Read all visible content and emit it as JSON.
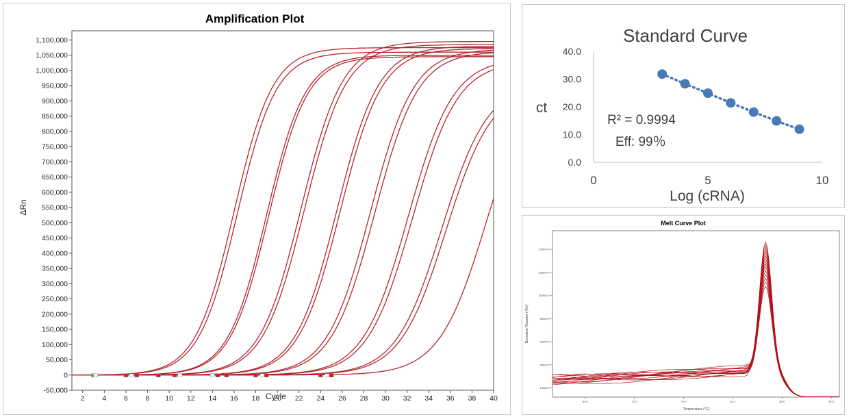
{
  "colors": {
    "curve": "#b3252c",
    "melt_curve": "#b0121b",
    "std_point": "#4a79b8",
    "axis": "#444444",
    "text": "#404040"
  },
  "chart_data": [
    {
      "id": "amplification",
      "type": "line",
      "title": "Amplification Plot",
      "xlabel": "Cycle",
      "ylabel": "ΔRn",
      "xlim": [
        1,
        40
      ],
      "ylim": [
        -50000,
        1130000
      ],
      "x_ticks": [
        2,
        4,
        6,
        8,
        10,
        12,
        14,
        16,
        18,
        20,
        22,
        24,
        26,
        28,
        30,
        32,
        34,
        36,
        38,
        40
      ],
      "y_ticks": [
        -50000,
        0,
        50000,
        100000,
        150000,
        200000,
        250000,
        300000,
        350000,
        400000,
        450000,
        500000,
        550000,
        600000,
        650000,
        700000,
        750000,
        800000,
        850000,
        900000,
        950000,
        1000000,
        1050000,
        1100000
      ],
      "y_tick_labels": [
        "-50,000",
        "0",
        "50,000",
        "100,000",
        "150,000",
        "200,000",
        "250,000",
        "300,000",
        "350,000",
        "400,000",
        "450,000",
        "500,000",
        "550,000",
        "600,000",
        "650,000",
        "700,000",
        "750,000",
        "800,000",
        "850,000",
        "900,000",
        "950,000",
        "1,000,000",
        "1,050,000",
        "1,100,000"
      ],
      "series": [
        {
          "ct": 16.0,
          "plateau": 1075000,
          "k": 0.56
        },
        {
          "ct": 16.3,
          "plateau": 1060000,
          "k": 0.56
        },
        {
          "ct": 19.0,
          "plateau": 1050000,
          "k": 0.56
        },
        {
          "ct": 19.2,
          "plateau": 1045000,
          "k": 0.56
        },
        {
          "ct": 22.2,
          "plateau": 1095000,
          "k": 0.52
        },
        {
          "ct": 22.5,
          "plateau": 1085000,
          "k": 0.52
        },
        {
          "ct": 25.5,
          "plateau": 1080000,
          "k": 0.52
        },
        {
          "ct": 25.8,
          "plateau": 1072000,
          "k": 0.52
        },
        {
          "ct": 28.6,
          "plateau": 1070000,
          "k": 0.5
        },
        {
          "ct": 29.0,
          "plateau": 1062000,
          "k": 0.5
        },
        {
          "ct": 32.1,
          "plateau": 1040000,
          "k": 0.48
        },
        {
          "ct": 32.5,
          "plateau": 1030000,
          "k": 0.48
        },
        {
          "ct": 35.2,
          "plateau": 960000,
          "k": 0.47
        },
        {
          "ct": 35.6,
          "plateau": 950000,
          "k": 0.47
        },
        {
          "ct": 39.3,
          "plateau": 1000000,
          "k": 0.46
        }
      ],
      "markers": [
        {
          "x": 3,
          "color": "#27c227"
        },
        {
          "x": 3.2,
          "color": "#ffffff"
        },
        {
          "x": 6,
          "color": "#d11c1c"
        },
        {
          "x": 6.5,
          "color": "#ffffff"
        },
        {
          "x": 7,
          "color": "#d11c1c"
        },
        {
          "x": 9,
          "color": "#d11c1c"
        },
        {
          "x": 11,
          "color": "#ffffff"
        },
        {
          "x": 10.5,
          "color": "#d11c1c"
        },
        {
          "x": 14.5,
          "color": "#d11c1c"
        },
        {
          "x": 15.3,
          "color": "#d11c1c"
        },
        {
          "x": 14,
          "color": "#ffffff"
        },
        {
          "x": 18,
          "color": "#d11c1c"
        },
        {
          "x": 18.6,
          "color": "#ffffff"
        },
        {
          "x": 19,
          "color": "#d11c1c"
        },
        {
          "x": 24,
          "color": "#d11c1c"
        },
        {
          "x": 24.6,
          "color": "#ffffff"
        },
        {
          "x": 25,
          "color": "#d11c1c"
        }
      ]
    },
    {
      "id": "standard_curve",
      "type": "scatter",
      "title": "Standard Curve",
      "xlabel": "Log (cRNA)",
      "ylabel": "ct",
      "xlim": [
        0,
        10
      ],
      "ylim": [
        0,
        40
      ],
      "x_ticks": [
        0,
        5,
        10
      ],
      "y_ticks": [
        0.0,
        10.0,
        20.0,
        30.0,
        40.0
      ],
      "y_tick_labels": [
        "0.0",
        "10.0",
        "20.0",
        "30.0",
        "40.0"
      ],
      "points": [
        {
          "x": 3,
          "y": 31.8
        },
        {
          "x": 4,
          "y": 28.3
        },
        {
          "x": 5,
          "y": 24.9
        },
        {
          "x": 6,
          "y": 21.4
        },
        {
          "x": 7,
          "y": 18.1
        },
        {
          "x": 8,
          "y": 14.9
        },
        {
          "x": 9,
          "y": 11.9
        }
      ],
      "trendline": "dotted",
      "annotations": {
        "r2": "R² = 0.9994",
        "eff": "Eff: 99％"
      }
    },
    {
      "id": "melt_curve",
      "type": "line",
      "title": "Melt Curve Plot",
      "xlabel": "Temperature (°C)",
      "ylabel": "Derivative Reporter (-Rn')",
      "xlim": [
        60,
        95
      ],
      "ylim": [
        0,
        180000
      ],
      "x_ticks": [
        64.0,
        70.0,
        76.0,
        82.0,
        88.0,
        94.0
      ],
      "x_tick_labels": [
        "64.0",
        "70.0",
        "76.0",
        "82.0",
        "88.0",
        "94.0"
      ],
      "y_ticks": [
        10000,
        35000,
        60000,
        85000,
        110000,
        135000,
        160000
      ],
      "y_tick_labels": [
        "10000.0",
        "35000.0",
        "60000.0",
        "85000.0",
        "110000.0",
        "135000.0",
        "160000.0"
      ],
      "peak_tm": 86.0,
      "series": [
        {
          "base": 18000,
          "peak": 168000
        },
        {
          "base": 20000,
          "peak": 165000
        },
        {
          "base": 16000,
          "peak": 162000
        },
        {
          "base": 21000,
          "peak": 159000
        },
        {
          "base": 17000,
          "peak": 156000
        },
        {
          "base": 19000,
          "peak": 153000
        },
        {
          "base": 22000,
          "peak": 150000
        },
        {
          "base": 15000,
          "peak": 147000
        },
        {
          "base": 20000,
          "peak": 144000
        },
        {
          "base": 18000,
          "peak": 141000
        },
        {
          "base": 17000,
          "peak": 137000
        },
        {
          "base": 21000,
          "peak": 133000
        },
        {
          "base": 19000,
          "peak": 129000
        },
        {
          "base": 16000,
          "peak": 125000
        },
        {
          "base": 20000,
          "peak": 120000
        }
      ]
    }
  ]
}
